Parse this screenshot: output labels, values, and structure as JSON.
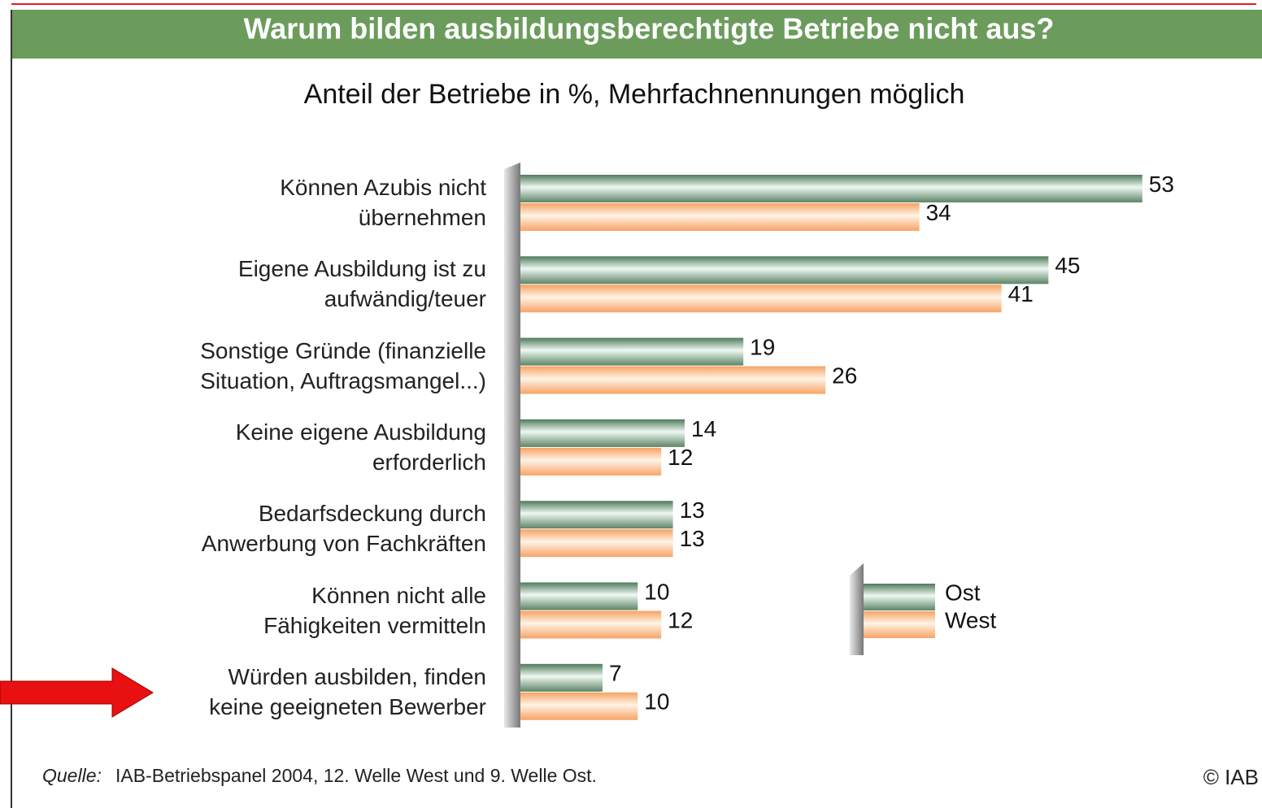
{
  "chart_data": {
    "type": "bar",
    "orientation": "horizontal",
    "title": "Warum bilden ausbildungsberechtigte Betriebe nicht aus?",
    "subtitle": "Anteil der Betriebe in %, Mehrfachnennungen möglich",
    "categories": [
      "Können Azubis nicht\nübernehmen",
      "Eigene Ausbildung ist zu\naufwändig/teuer",
      "Sonstige Gründe (finanzielle\nSituation, Auftragsmangel...)",
      "Keine eigene Ausbildung\nerforderlich",
      "Bedarfsdeckung durch\nAnwerbung von Fachkräften",
      "Können nicht alle\nFähigkeiten vermitteln",
      "Würden ausbilden, finden\nkeine geeigneten Bewerber"
    ],
    "series": [
      {
        "name": "Ost",
        "color": "#5f8f6c",
        "values": [
          53,
          45,
          19,
          14,
          13,
          10,
          7
        ]
      },
      {
        "name": "West",
        "color": "#f7a768",
        "values": [
          34,
          41,
          26,
          12,
          13,
          12,
          10
        ]
      }
    ],
    "source_label": "Quelle:",
    "source": "IAB-Betriebspanel 2004, 12. Welle West und 9. Welle Ost.",
    "copyright": "© IAB"
  }
}
